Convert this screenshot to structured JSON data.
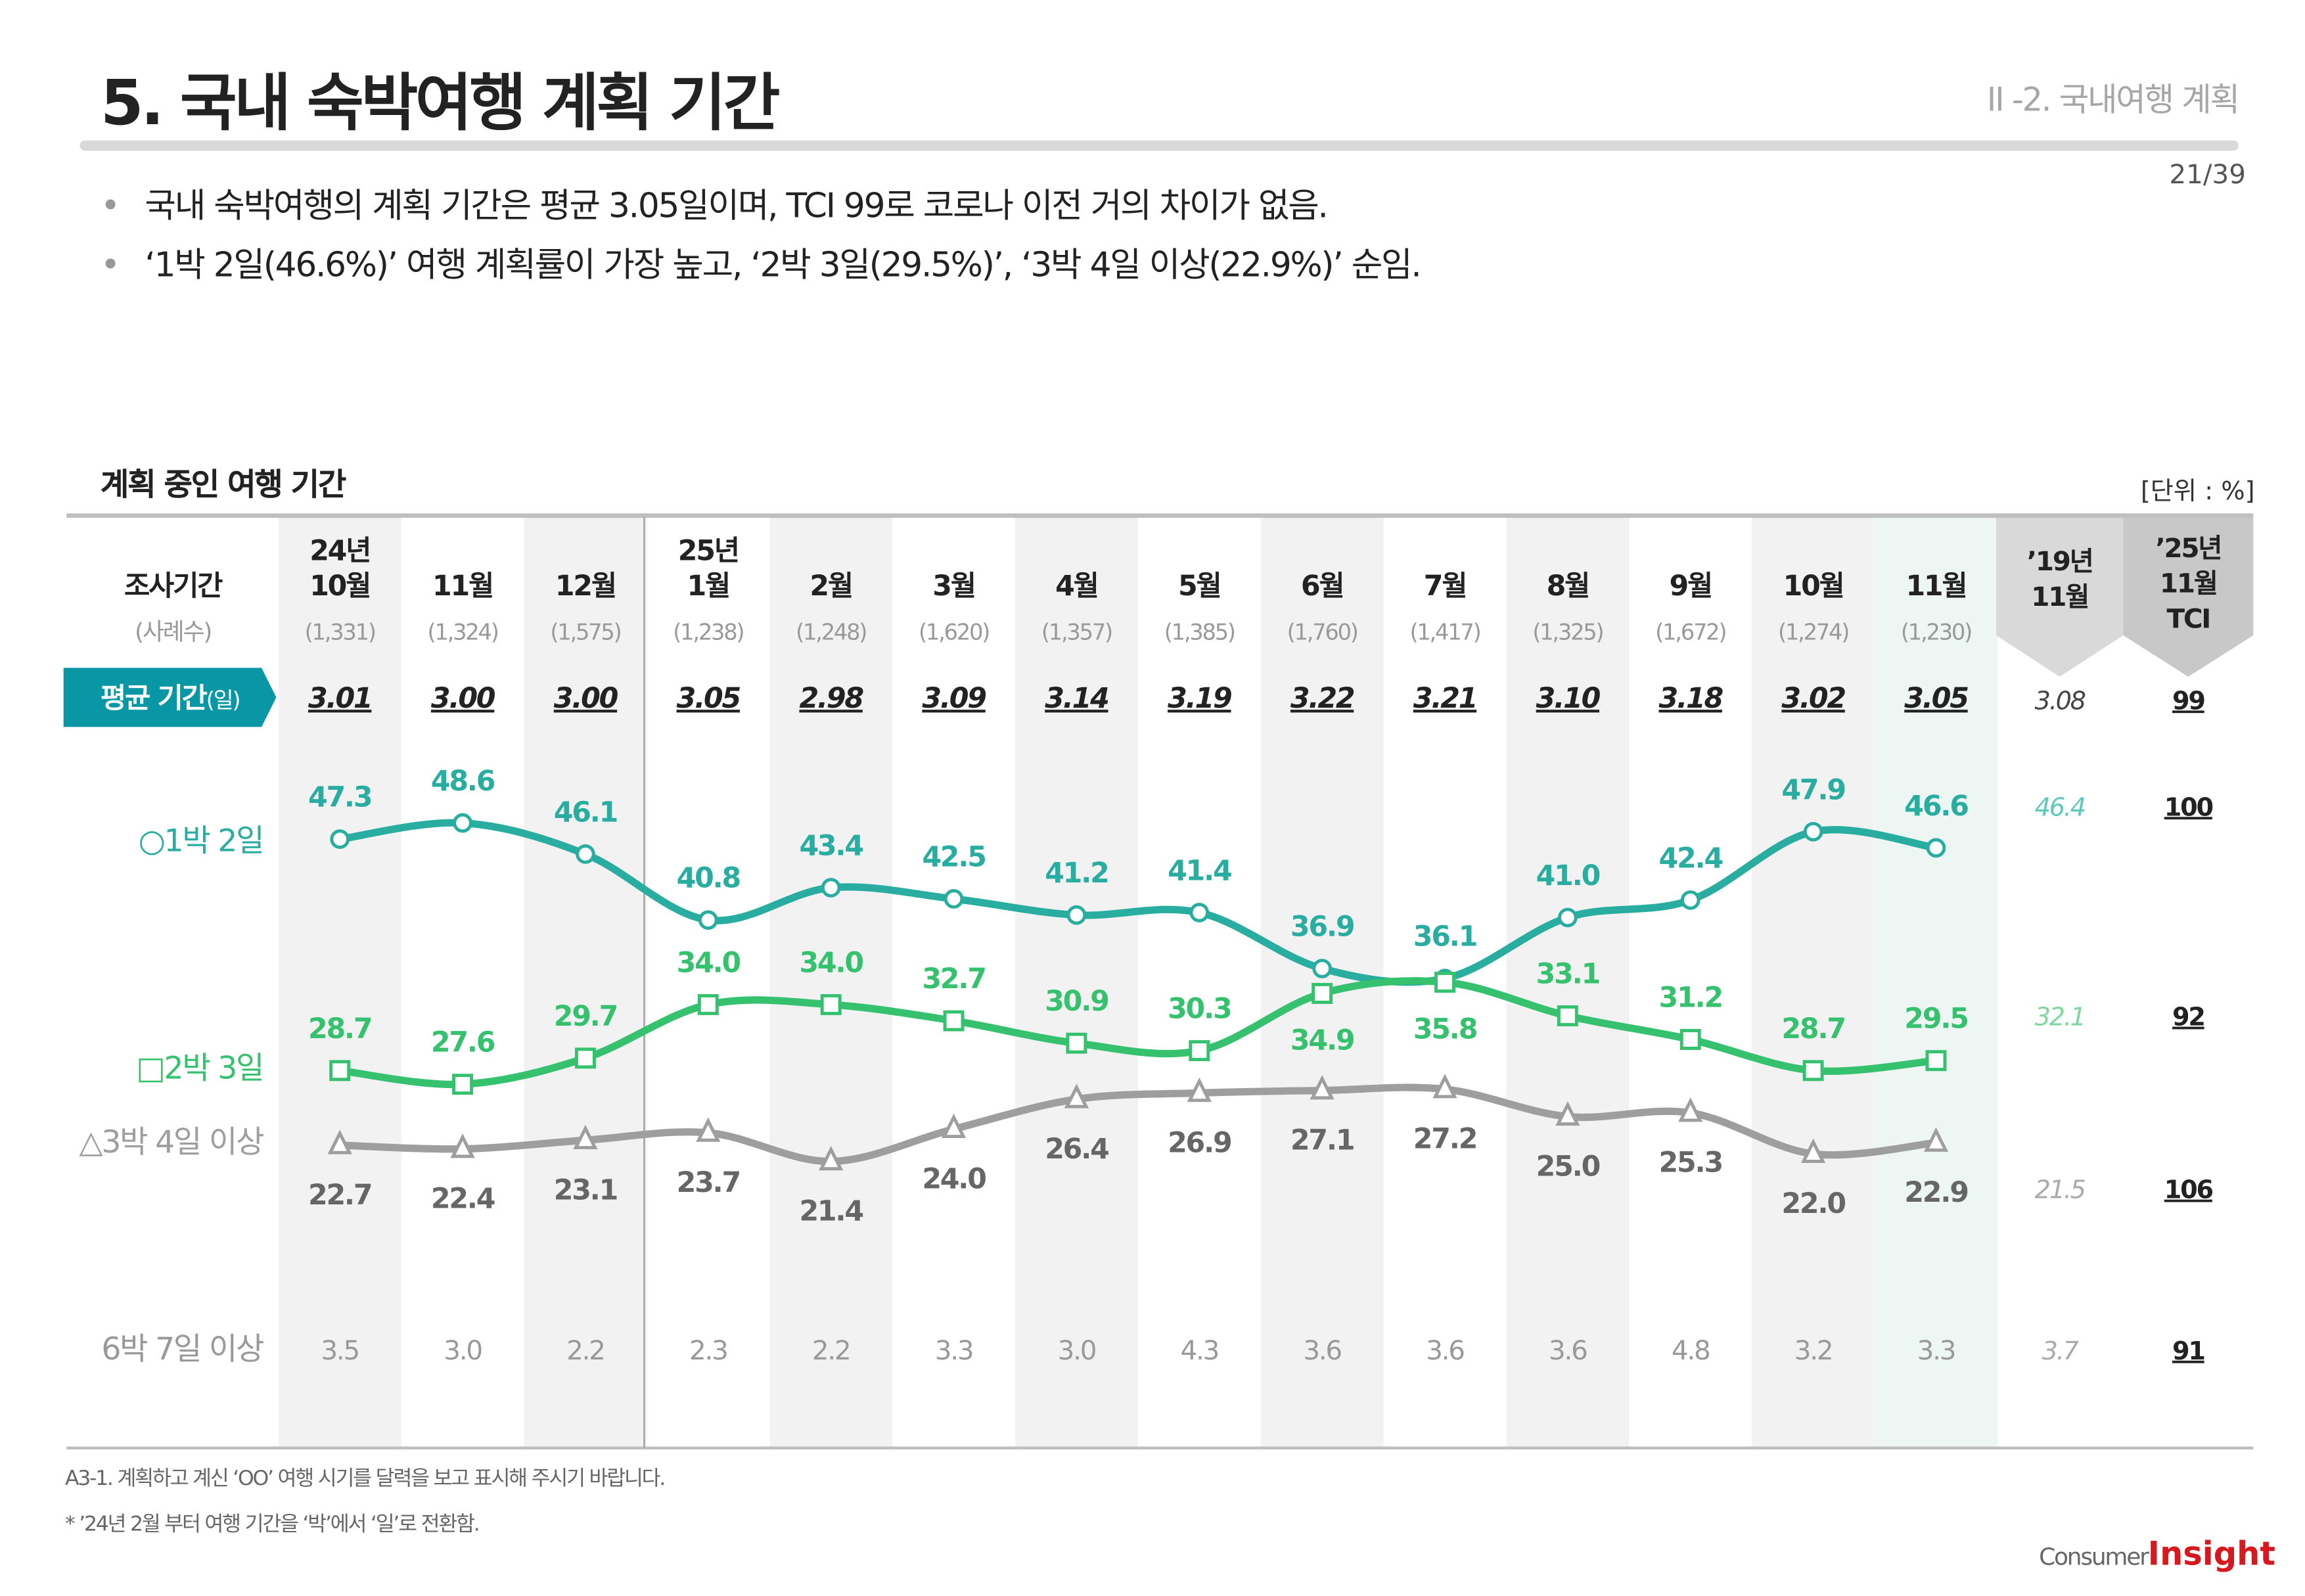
{
  "header": {
    "title": "5. 국내 숙박여행 계획 기간",
    "section": "II -2. 국내여행 계획",
    "page": "21/39"
  },
  "bullets": [
    "국내 숙박여행의 계획 기간은 평균 3.05일이며, TCI 99로 코로나 이전 거의 차이가 없음.",
    "‘1박 2일(46.6%)’ 여행 계획률이 가장 높고, ‘2박 3일(29.5%)’, ‘3박 4일 이상(22.9%)’ 순임."
  ],
  "chart_title": "계획 중인 여행 기간",
  "unit": "[단위 : %]",
  "row_labels": {
    "period": "조사기간",
    "sample": "(사례수)",
    "avg": "평균 기간",
    "avg_suffix": "(일)"
  },
  "colors": {
    "teal": "#2aada1",
    "green": "#36c16f",
    "gray": "#9e9e9e",
    "badge": "#0a97a5"
  },
  "chart_data": {
    "type": "line",
    "categories": [
      {
        "year": "24년",
        "month": "10월",
        "n": "(1,331)"
      },
      {
        "year": "",
        "month": "11월",
        "n": "(1,324)"
      },
      {
        "year": "",
        "month": "12월",
        "n": "(1,575)"
      },
      {
        "year": "25년",
        "month": "1월",
        "n": "(1,238)"
      },
      {
        "year": "",
        "month": "2월",
        "n": "(1,248)"
      },
      {
        "year": "",
        "month": "3월",
        "n": "(1,620)"
      },
      {
        "year": "",
        "month": "4월",
        "n": "(1,357)"
      },
      {
        "year": "",
        "month": "5월",
        "n": "(1,385)"
      },
      {
        "year": "",
        "month": "6월",
        "n": "(1,760)"
      },
      {
        "year": "",
        "month": "7월",
        "n": "(1,417)"
      },
      {
        "year": "",
        "month": "8월",
        "n": "(1,325)"
      },
      {
        "year": "",
        "month": "9월",
        "n": "(1,672)"
      },
      {
        "year": "",
        "month": "10월",
        "n": "(1,274)"
      },
      {
        "year": "",
        "month": "11월",
        "n": "(1,230)"
      }
    ],
    "avg_days": [
      "3.01",
      "3.00",
      "3.00",
      "3.05",
      "2.98",
      "3.09",
      "3.14",
      "3.19",
      "3.22",
      "3.21",
      "3.10",
      "3.18",
      "3.02",
      "3.05"
    ],
    "series": [
      {
        "name": "○1박 2일",
        "marker": "circle",
        "color": "#2aada1",
        "values": [
          47.3,
          48.6,
          46.1,
          40.8,
          43.4,
          42.5,
          41.2,
          41.4,
          36.9,
          36.1,
          41.0,
          42.4,
          47.9,
          46.6
        ]
      },
      {
        "name": "□2박 3일",
        "marker": "square",
        "color": "#36c16f",
        "values": [
          28.7,
          27.6,
          29.7,
          34.0,
          34.0,
          32.7,
          30.9,
          30.3,
          34.9,
          35.8,
          33.1,
          31.2,
          28.7,
          29.5
        ]
      },
      {
        "name": "△3박 4일 이상",
        "marker": "triangle",
        "color": "#9e9e9e",
        "values": [
          22.7,
          22.4,
          23.1,
          23.7,
          21.4,
          24.0,
          26.4,
          26.9,
          27.1,
          27.2,
          25.0,
          25.3,
          22.0,
          22.9
        ]
      },
      {
        "name": "6박 7일 이상",
        "marker": "none",
        "color": "#9e9e9e",
        "values": [
          3.5,
          3.0,
          2.2,
          2.3,
          2.2,
          3.3,
          3.0,
          4.3,
          3.6,
          3.6,
          3.6,
          4.8,
          3.2,
          3.3
        ]
      }
    ],
    "comparison": {
      "y2019": {
        "label1": "’19년",
        "label2": "11월",
        "avg": "3.08",
        "values": [
          "46.4",
          "32.1",
          "21.5",
          "3.7"
        ]
      },
      "tci": {
        "label1": "’25년",
        "label2": "11월",
        "label3": "TCI",
        "avg": "99",
        "values": [
          "100",
          "92",
          "106",
          "91"
        ]
      }
    }
  },
  "footnotes": [
    "A3-1. 계획하고 계신 ‘OO’ 여행 시기를 달력을 보고 표시해 주시기 바랍니다.",
    "* ’24년 2월 부터 여행 기간을 ‘박’에서 ‘일’로 전환함."
  ],
  "logo": {
    "part1": "Consumer",
    "part2": "Insight"
  }
}
